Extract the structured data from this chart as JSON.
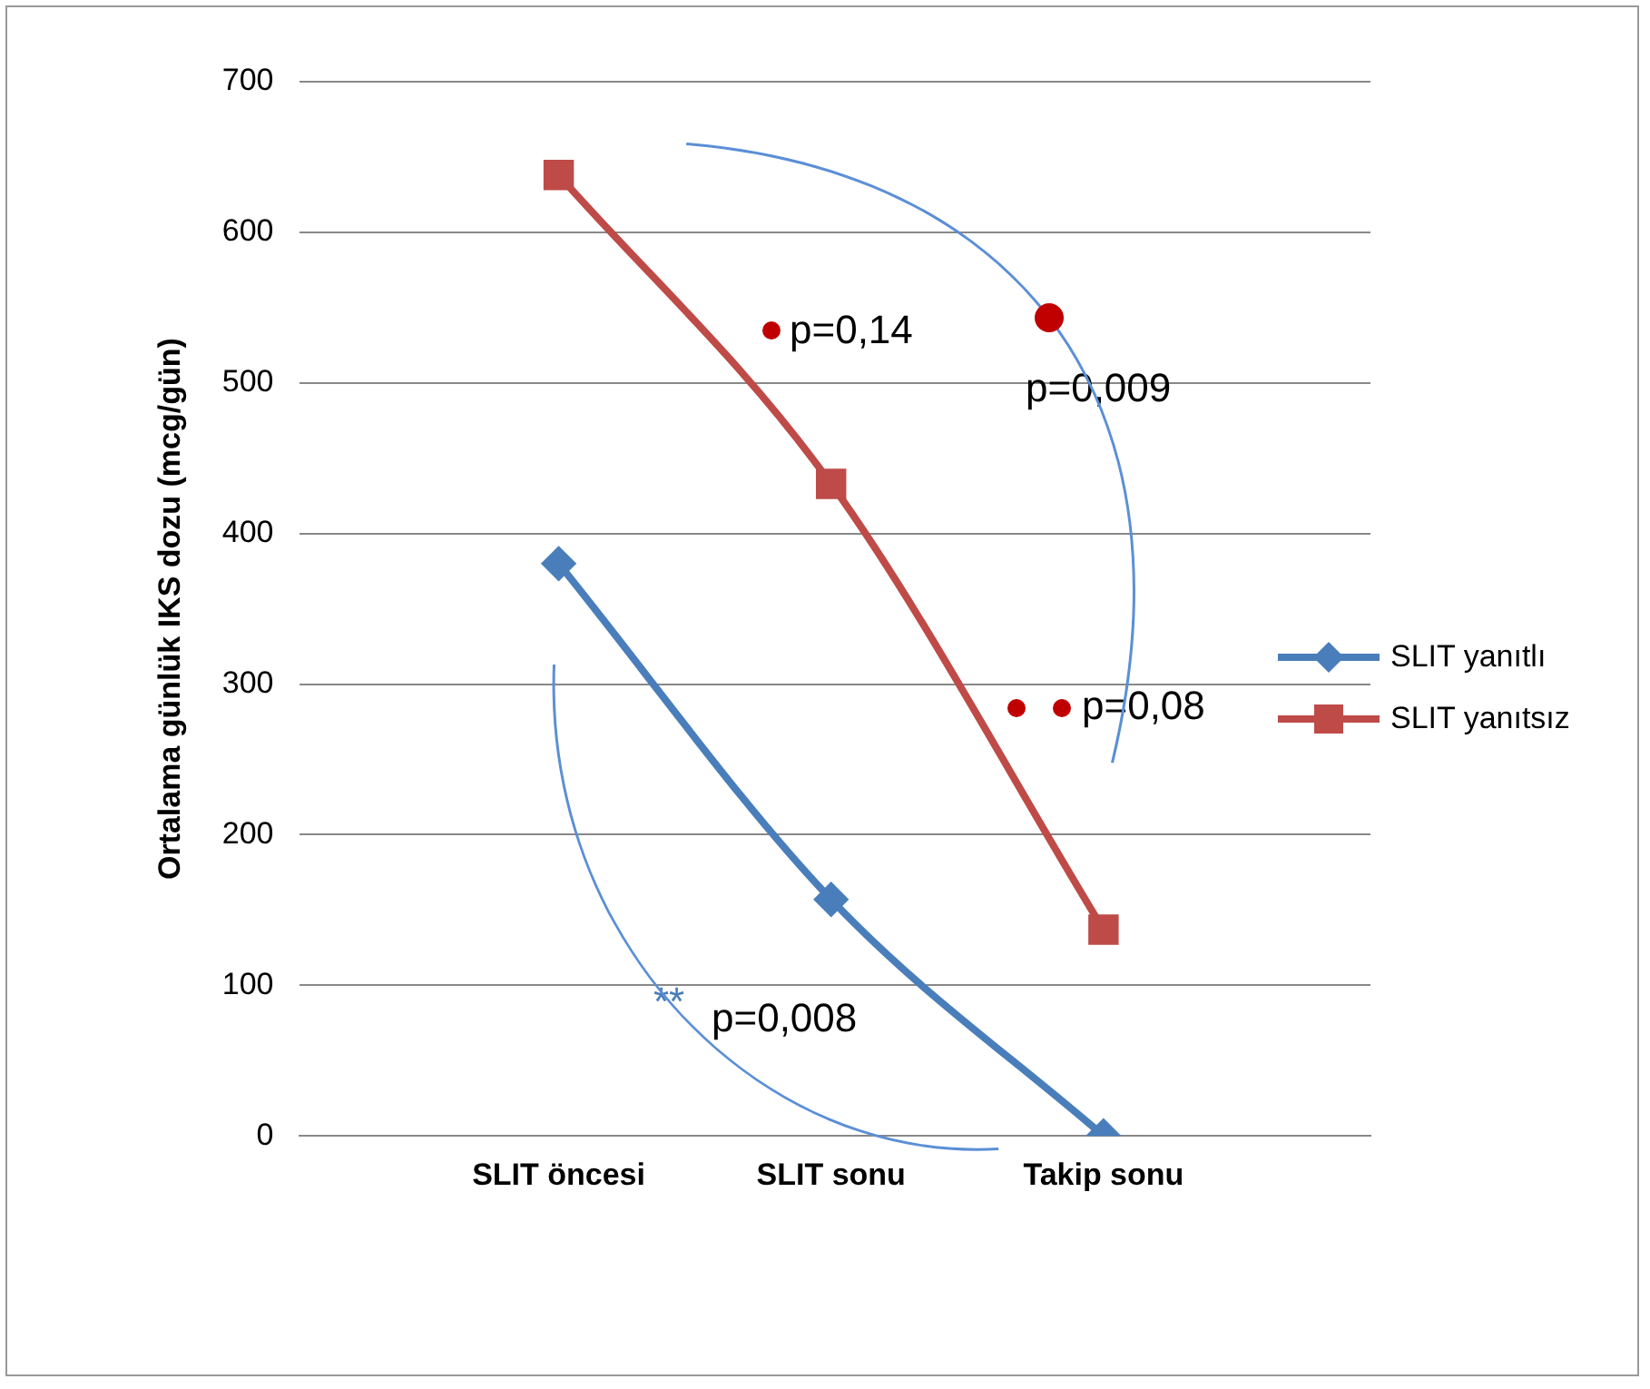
{
  "chart_data": {
    "type": "line",
    "ylabel": "Ortalama günlük IKS dozu (mcg/gün)",
    "categories": [
      "SLIT öncesi",
      "SLIT sonu",
      "Takip sonu"
    ],
    "series": [
      {
        "name": "SLIT yanıtlı",
        "color": "#4a7ebb",
        "marker": "diamond",
        "values": [
          380,
          157,
          0
        ]
      },
      {
        "name": "SLIT yanıtsız",
        "color": "#be4b48",
        "marker": "square",
        "values": [
          638,
          433,
          137
        ]
      }
    ],
    "ylim": [
      0,
      700
    ],
    "yticks": [
      0,
      100,
      200,
      300,
      400,
      500,
      600,
      700
    ],
    "grid": "y",
    "legend": "right",
    "annotations": [
      "p=0,14",
      "p=0,009",
      "p=0,08",
      "**",
      "p=0,008"
    ]
  }
}
